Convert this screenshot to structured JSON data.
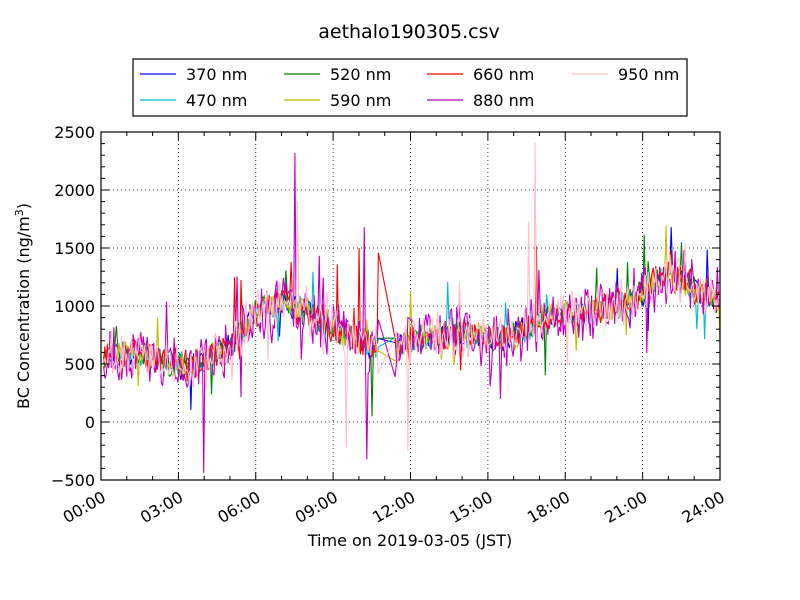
{
  "chart_data": {
    "type": "line",
    "title": "aethalo190305.csv",
    "xlabel": "Time on 2019-03-05 (JST)",
    "ylabel_main": "BC Concentration (ng/m",
    "ylabel_sup": "3",
    "ylabel_close": ")",
    "xlim": [
      0,
      24
    ],
    "ylim": [
      -500,
      2500
    ],
    "x_ticks": [
      0,
      3,
      6,
      9,
      12,
      15,
      18,
      21,
      24
    ],
    "x_tick_labels": [
      "00:00",
      "03:00",
      "06:00",
      "09:00",
      "12:00",
      "15:00",
      "18:00",
      "21:00",
      "24:00"
    ],
    "y_ticks": [
      -500,
      0,
      500,
      1000,
      1500,
      2000,
      2500
    ],
    "y_tick_labels": [
      "−500",
      "0",
      "500",
      "1000",
      "1500",
      "2000",
      "2500"
    ],
    "grid": true,
    "legend_position": "top",
    "series": [
      {
        "name": "370 nm",
        "color": "#0000ff",
        "seed": 11,
        "noise": 0.55,
        "spikes": [
          [
            10.75,
            720
          ]
        ]
      },
      {
        "name": "470 nm",
        "color": "#00bfbf",
        "seed": 23,
        "noise": 0.55,
        "spikes": [
          [
            17.3,
            1100
          ]
        ]
      },
      {
        "name": "520 nm",
        "color": "#008000",
        "seed": 37,
        "noise": 0.6,
        "spikes": [
          [
            10.5,
            50
          ],
          [
            19.2,
            1330
          ]
        ]
      },
      {
        "name": "590 nm",
        "color": "#bfbf00",
        "seed": 41,
        "noise": 0.6,
        "spikes": [
          [
            2.2,
            900
          ]
        ]
      },
      {
        "name": "660 nm",
        "color": "#ff0000",
        "seed": 53,
        "noise": 0.7,
        "spikes": [
          [
            5.2,
            1250
          ],
          [
            10.0,
            1500
          ],
          [
            11.0,
            1460
          ],
          [
            16.9,
            1520
          ]
        ]
      },
      {
        "name": "880 nm",
        "color": "#bf00bf",
        "seed": 67,
        "noise": 1.2,
        "spikes": [
          [
            7.5,
            2320
          ],
          [
            10.2,
            1680
          ],
          [
            4.0,
            -440
          ],
          [
            10.3,
            -320
          ],
          [
            15.5,
            200
          ]
        ]
      },
      {
        "name": "950 nm",
        "color": "#ffc0cb",
        "seed": 79,
        "noise": 1.0,
        "spikes": [
          [
            7.6,
            1900
          ],
          [
            16.85,
            2410
          ],
          [
            16.6,
            1730
          ],
          [
            11.9,
            -250
          ],
          [
            9.5,
            -220
          ]
        ]
      }
    ],
    "baseline": [
      [
        0,
        600
      ],
      [
        1,
        600
      ],
      [
        2,
        560
      ],
      [
        3,
        480
      ],
      [
        4,
        520
      ],
      [
        5,
        650
      ],
      [
        6,
        950
      ],
      [
        7,
        1050
      ],
      [
        8,
        950
      ],
      [
        9,
        820
      ],
      [
        10,
        700
      ],
      [
        11,
        600
      ],
      [
        12,
        700
      ],
      [
        13,
        740
      ],
      [
        14,
        760
      ],
      [
        15,
        720
      ],
      [
        16,
        740
      ],
      [
        17,
        880
      ],
      [
        18,
        930
      ],
      [
        19,
        960
      ],
      [
        20,
        1000
      ],
      [
        21,
        1120
      ],
      [
        22,
        1300
      ],
      [
        23,
        1150
      ],
      [
        24,
        1050
      ]
    ]
  }
}
